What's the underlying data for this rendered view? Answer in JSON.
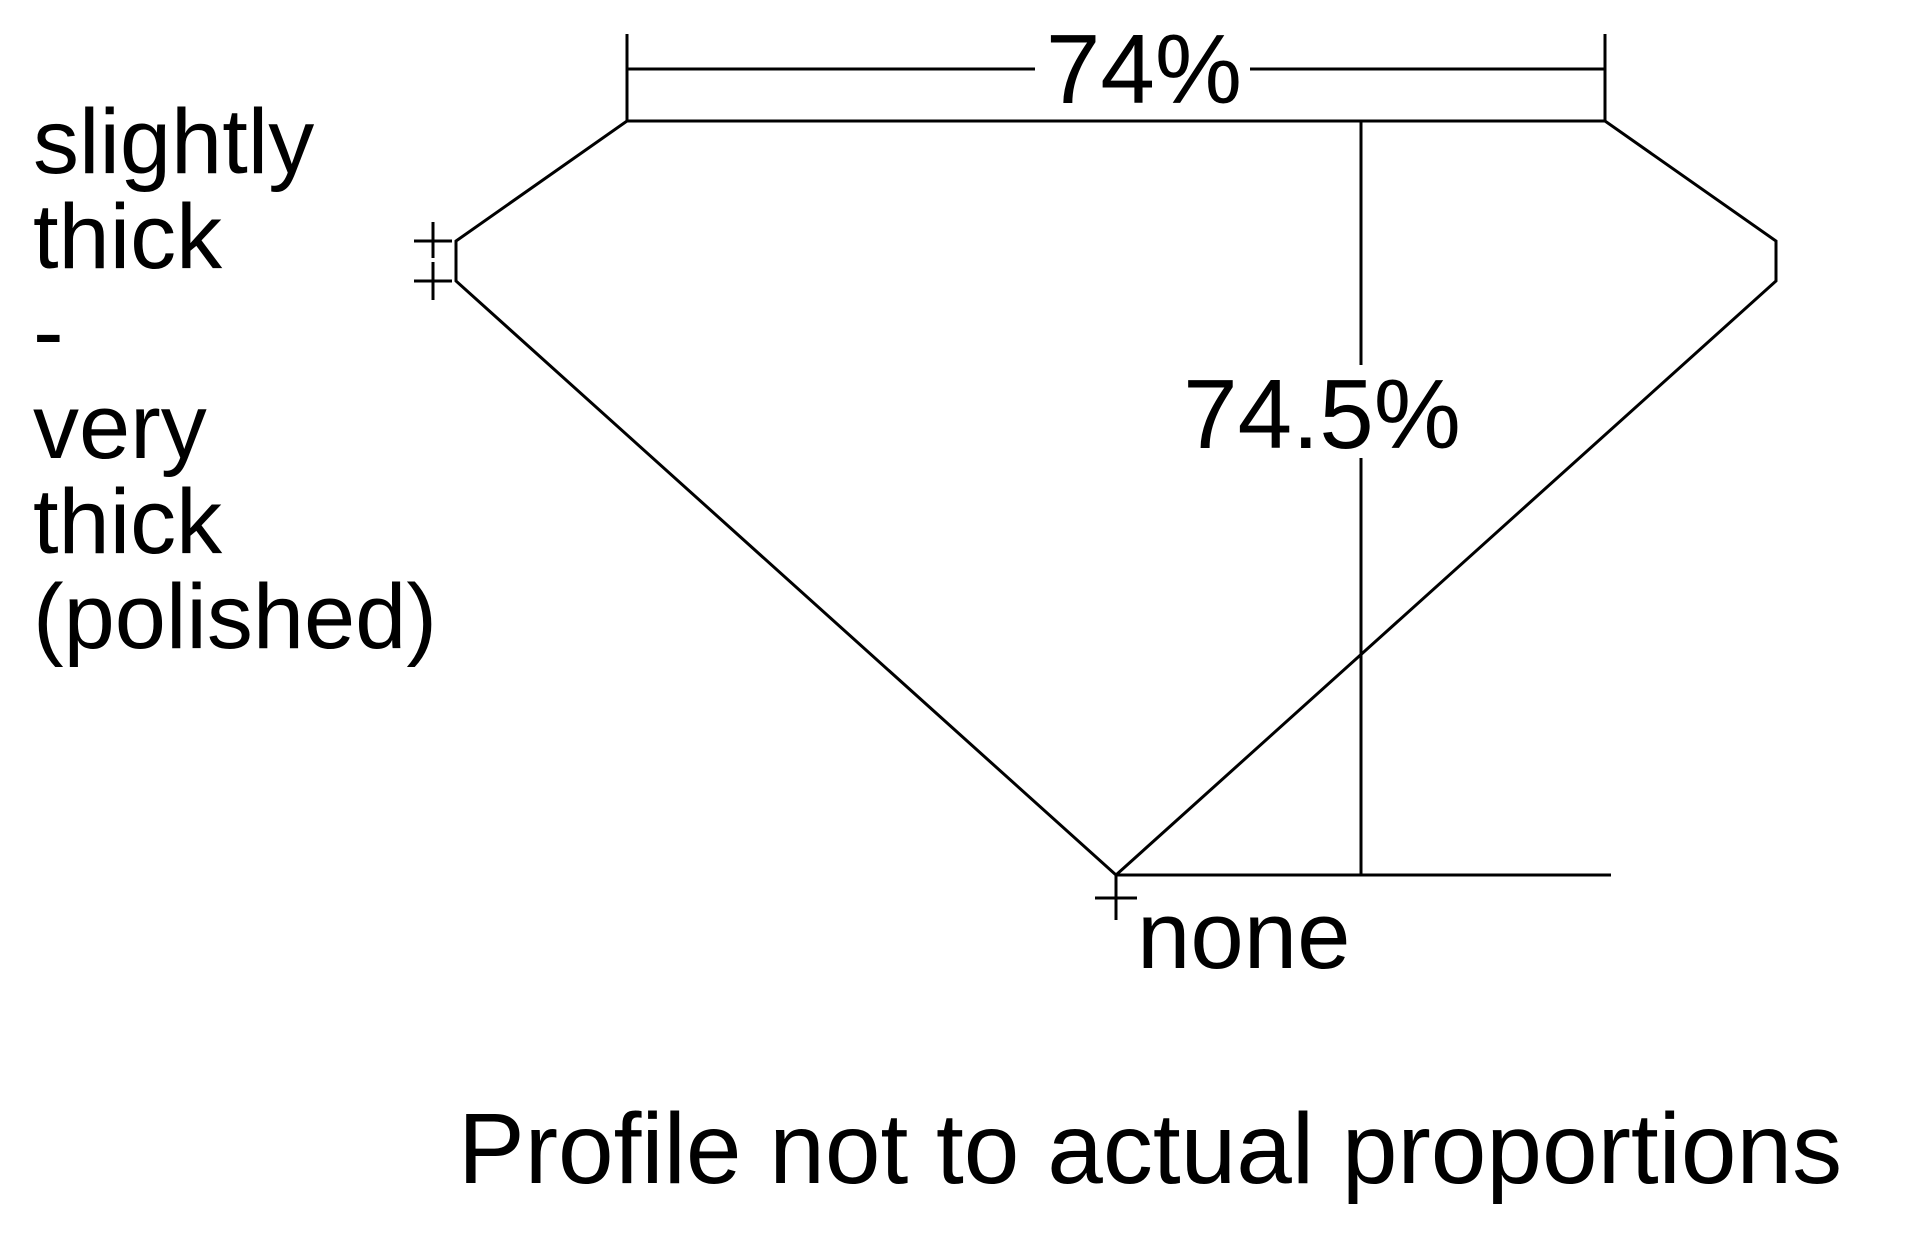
{
  "diagram": {
    "top_dimension_label": "74%",
    "depth_dimension_label": "74.5%",
    "girdle_label_lines": [
      "slightly",
      "thick",
      "-",
      "very",
      "thick",
      "(polished)"
    ],
    "culet_label": "none",
    "footnote": "Profile not to actual proportions",
    "line_color": "#000000",
    "background_color": "#ffffff"
  }
}
